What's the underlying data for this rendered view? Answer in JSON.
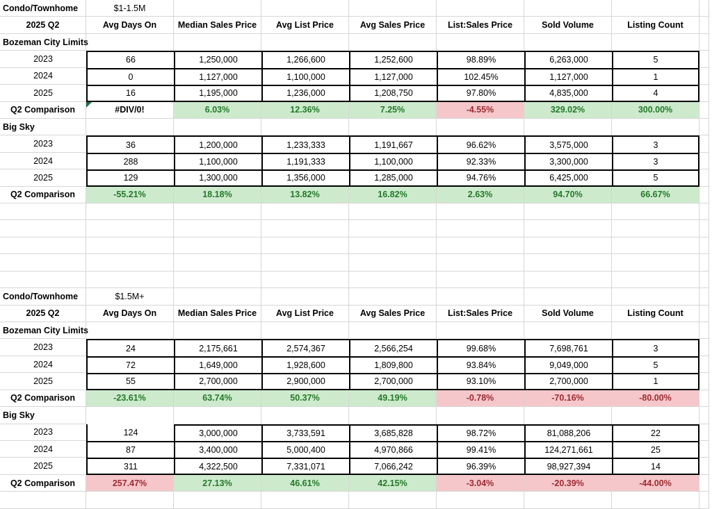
{
  "colors": {
    "gridline": "#D6D6D6",
    "cell_border": "#000000",
    "good_fill": "#CDEACD",
    "good_text": "#237A28",
    "bad_fill": "#F5C7CA",
    "bad_text": "#9C2B31",
    "error_indicator": "#1E7145"
  },
  "icons": {
    "error_indicator": "green-corner-triangle"
  },
  "tables": [
    {
      "category": "Condo/Townhome",
      "price_range": "$1-1.5M",
      "period": "2025 Q2",
      "headers": [
        "Avg Days On",
        "Median Sales Price",
        "Avg List Price",
        "Avg Sales Price",
        "List:Sales Price",
        "Sold Volume",
        "Listing Count"
      ],
      "sections": [
        {
          "name": "Bozeman City Limits",
          "rows": [
            {
              "year": "2023",
              "values": [
                "66",
                "1,250,000",
                "1,266,600",
                "1,252,600",
                "98.89%",
                "6,263,000",
                "5"
              ]
            },
            {
              "year": "2024",
              "values": [
                "0",
                "1,127,000",
                "1,100,000",
                "1,127,000",
                "102.45%",
                "1,127,000",
                "1"
              ]
            },
            {
              "year": "2025",
              "values": [
                "16",
                "1,195,000",
                "1,236,000",
                "1,208,750",
                "97.80%",
                "4,835,000",
                "4"
              ]
            }
          ],
          "comparison": {
            "label": "Q2 Comparison",
            "cells": [
              {
                "text": "#DIV/0!",
                "style": "error"
              },
              {
                "text": "6.03%",
                "style": "good"
              },
              {
                "text": "12.36%",
                "style": "good"
              },
              {
                "text": "7.25%",
                "style": "good"
              },
              {
                "text": "-4.55%",
                "style": "bad"
              },
              {
                "text": "329.02%",
                "style": "good"
              },
              {
                "text": "300.00%",
                "style": "good"
              }
            ]
          }
        },
        {
          "name": "Big Sky",
          "rows": [
            {
              "year": "2023",
              "values": [
                "36",
                "1,200,000",
                "1,233,333",
                "1,191,667",
                "96.62%",
                "3,575,000",
                "3"
              ]
            },
            {
              "year": "2024",
              "values": [
                "288",
                "1,100,000",
                "1,191,333",
                "1,100,000",
                "92.33%",
                "3,300,000",
                "3"
              ]
            },
            {
              "year": "2025",
              "values": [
                "129",
                "1,300,000",
                "1,356,000",
                "1,285,000",
                "94.76%",
                "6,425,000",
                "5"
              ]
            }
          ],
          "comparison": {
            "label": "Q2 Comparison",
            "cells": [
              {
                "text": "-55.21%",
                "style": "good"
              },
              {
                "text": "18.18%",
                "style": "good"
              },
              {
                "text": "13.82%",
                "style": "good"
              },
              {
                "text": "16.82%",
                "style": "good"
              },
              {
                "text": "2.63%",
                "style": "good"
              },
              {
                "text": "94.70%",
                "style": "good"
              },
              {
                "text": "66.67%",
                "style": "good"
              }
            ]
          }
        }
      ]
    },
    {
      "category": "Condo/Townhome",
      "price_range": "$1.5M+",
      "period": "2025 Q2",
      "headers": [
        "Avg Days On",
        "Median Sales Price",
        "Avg List Price",
        "Avg Sales Price",
        "List:Sales Price",
        "Sold Volume",
        "Listing Count"
      ],
      "sections": [
        {
          "name": "Bozeman City Limits",
          "rows": [
            {
              "year": "2023",
              "values": [
                "24",
                "2,175,661",
                "2,574,367",
                "2,566,254",
                "99.68%",
                "7,698,761",
                "3"
              ]
            },
            {
              "year": "2024",
              "values": [
                "72",
                "1,649,000",
                "1,928,600",
                "1,809,800",
                "93.84%",
                "9,049,000",
                "5"
              ]
            },
            {
              "year": "2025",
              "values": [
                "55",
                "2,700,000",
                "2,900,000",
                "2,700,000",
                "93.10%",
                "2,700,000",
                "1"
              ]
            }
          ],
          "comparison": {
            "label": "Q2 Comparison",
            "cells": [
              {
                "text": "-23.61%",
                "style": "good"
              },
              {
                "text": "63.74%",
                "style": "good"
              },
              {
                "text": "50.37%",
                "style": "good"
              },
              {
                "text": "49.19%",
                "style": "good"
              },
              {
                "text": "-0.78%",
                "style": "bad"
              },
              {
                "text": "-70.16%",
                "style": "bad"
              },
              {
                "text": "-80.00%",
                "style": "bad"
              }
            ]
          }
        },
        {
          "name": "Big Sky",
          "rows": [
            {
              "year": "2023",
              "values": [
                "124",
                "3,000,000",
                "3,733,591",
                "3,685,828",
                "98.72%",
                "81,088,206",
                "22"
              ]
            },
            {
              "year": "2024",
              "values": [
                "87",
                "3,400,000",
                "5,000,400",
                "4,970,866",
                "99.41%",
                "124,271,661",
                "25"
              ]
            },
            {
              "year": "2025",
              "values": [
                "311",
                "4,322,500",
                "7,331,071",
                "7,066,242",
                "96.39%",
                "98,927,394",
                "14"
              ]
            }
          ],
          "comparison": {
            "label": "Q2 Comparison",
            "cells": [
              {
                "text": "257.47%",
                "style": "bad"
              },
              {
                "text": "27.13%",
                "style": "good"
              },
              {
                "text": "46.61%",
                "style": "good"
              },
              {
                "text": "42.15%",
                "style": "good"
              },
              {
                "text": "-3.04%",
                "style": "bad"
              },
              {
                "text": "-20.39%",
                "style": "bad"
              },
              {
                "text": "-44.00%",
                "style": "bad"
              }
            ]
          }
        }
      ]
    }
  ]
}
